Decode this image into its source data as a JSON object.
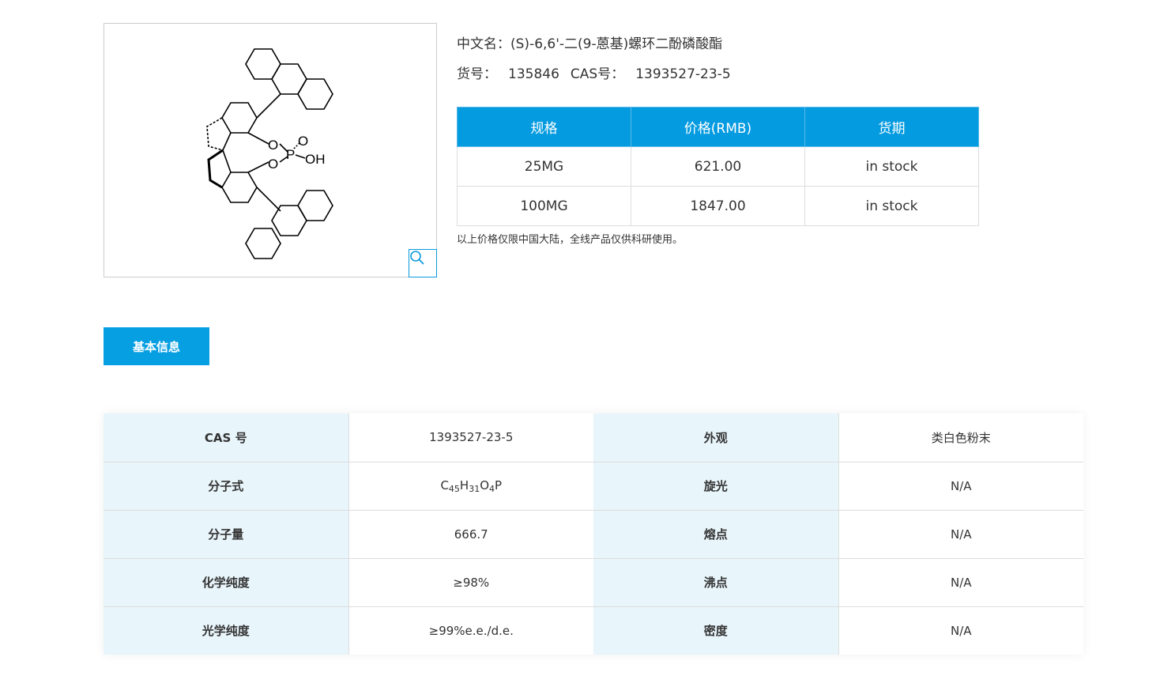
{
  "product": {
    "name_label": "中文名：",
    "name": "(S)-6,6'-二(9-蒽基)螺环二酚磷酸酯",
    "item_no_label": "货号：",
    "item_no": "135846",
    "cas_label": "CAS号：",
    "cas": "1393527-23-5",
    "structure_labels": {
      "o1": "O",
      "o2": "O",
      "o3": "O",
      "p": "P",
      "oh": "OH"
    },
    "zoom_icon": "magnifier-icon"
  },
  "price_table": {
    "headers": [
      "规格",
      "价格(RMB)",
      "货期"
    ],
    "rows": [
      [
        "25MG",
        "621.00",
        "in stock"
      ],
      [
        "100MG",
        "1847.00",
        "in stock"
      ]
    ],
    "note": "以上价格仅限中国大陆，全线产品仅供科研使用。"
  },
  "tab": {
    "label": "基本信息"
  },
  "props": {
    "rows": [
      [
        "CAS 号",
        "1393527-23-5",
        "外观",
        "类白色粉末"
      ],
      [
        "分子式",
        "",
        "旋光",
        "N/A"
      ],
      [
        "分子量",
        "666.7",
        "熔点",
        "N/A"
      ],
      [
        "化学纯度",
        "≥98%",
        "沸点",
        "N/A"
      ],
      [
        "光学纯度",
        "≥99%e.e./d.e.",
        "密度",
        "N/A"
      ]
    ],
    "formula": {
      "c": "C",
      "c_n": "45",
      "h": "H",
      "h_n": "31",
      "o": "O",
      "o_n": "4",
      "p": "P"
    }
  },
  "colors": {
    "accent": "#059be0",
    "label_bg": "#e8f5fb"
  }
}
